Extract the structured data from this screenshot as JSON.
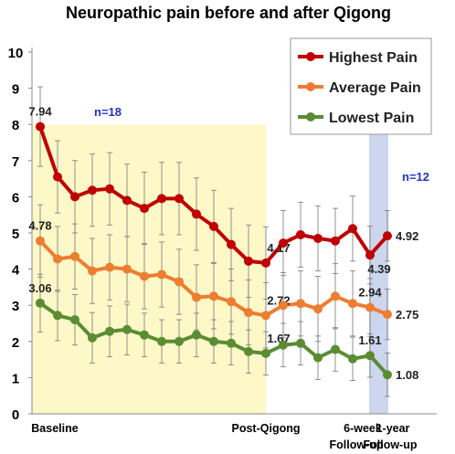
{
  "chart_data": {
    "type": "line",
    "title": "Neuropathic pain before and after Qigong",
    "categories": [
      "Baseline",
      null,
      null,
      null,
      null,
      null,
      null,
      null,
      null,
      null,
      null,
      null,
      null,
      "Post-Qigong",
      null,
      null,
      null,
      null,
      null,
      "6-week Follow-up",
      "1-year Follow-up"
    ],
    "series": [
      {
        "name": "Highest Pain",
        "color": "#c00000",
        "values": [
          7.94,
          6.55,
          6.0,
          6.18,
          6.22,
          5.9,
          5.68,
          5.95,
          5.95,
          5.52,
          5.18,
          4.68,
          4.22,
          4.17,
          4.72,
          4.95,
          4.85,
          4.78,
          5.12,
          4.39,
          4.92
        ],
        "errors": [
          1.1,
          1.0,
          1.0,
          1.0,
          1.0,
          1.0,
          1.0,
          1.0,
          1.0,
          1.0,
          1.0,
          1.0,
          1.0,
          1.0,
          0.9,
          0.9,
          0.9,
          0.9,
          0.9,
          0.8,
          0.7
        ],
        "value_labels": [
          "7.94",
          null,
          null,
          null,
          null,
          null,
          null,
          null,
          null,
          null,
          null,
          null,
          null,
          "4.17",
          null,
          null,
          null,
          null,
          null,
          "4.39",
          "4.92"
        ]
      },
      {
        "name": "Average Pain",
        "color": "#ed7d31",
        "values": [
          4.78,
          4.28,
          4.35,
          3.95,
          4.05,
          4.0,
          3.8,
          3.85,
          3.65,
          3.22,
          3.25,
          3.1,
          2.8,
          2.72,
          3.0,
          3.05,
          2.9,
          3.25,
          3.05,
          2.94,
          2.75
        ],
        "errors": [
          1.0,
          0.9,
          0.9,
          0.9,
          0.9,
          0.9,
          0.9,
          0.9,
          0.9,
          0.9,
          0.9,
          0.9,
          0.9,
          0.9,
          0.9,
          0.9,
          0.9,
          0.9,
          0.9,
          0.8,
          0.7
        ],
        "value_labels": [
          "4.78",
          null,
          null,
          null,
          null,
          null,
          null,
          null,
          null,
          null,
          null,
          null,
          null,
          "2.72",
          null,
          null,
          null,
          null,
          null,
          "2.94",
          "2.75"
        ]
      },
      {
        "name": "Lowest Pain",
        "color": "#5b8c32",
        "values": [
          3.06,
          2.72,
          2.6,
          2.1,
          2.28,
          2.33,
          2.18,
          2.0,
          2.0,
          2.18,
          2.0,
          1.95,
          1.72,
          1.67,
          1.9,
          1.95,
          1.55,
          1.78,
          1.52,
          1.61,
          1.08
        ],
        "errors": [
          0.8,
          0.7,
          0.7,
          0.7,
          0.7,
          0.7,
          0.6,
          0.6,
          0.6,
          0.6,
          0.6,
          0.6,
          0.6,
          0.6,
          0.6,
          0.6,
          0.6,
          0.6,
          0.6,
          0.6,
          0.6
        ],
        "value_labels": [
          "3.06",
          null,
          null,
          null,
          null,
          null,
          null,
          null,
          null,
          null,
          null,
          null,
          null,
          "1.67",
          null,
          null,
          null,
          null,
          null,
          "1.61",
          "1.08"
        ]
      }
    ],
    "annotations": [
      "n=18",
      "n=12"
    ],
    "ylim": [
      0,
      10
    ],
    "yticks": [
      0,
      1,
      2,
      3,
      4,
      5,
      6,
      7,
      8,
      9,
      10
    ],
    "legend": "upper right"
  }
}
